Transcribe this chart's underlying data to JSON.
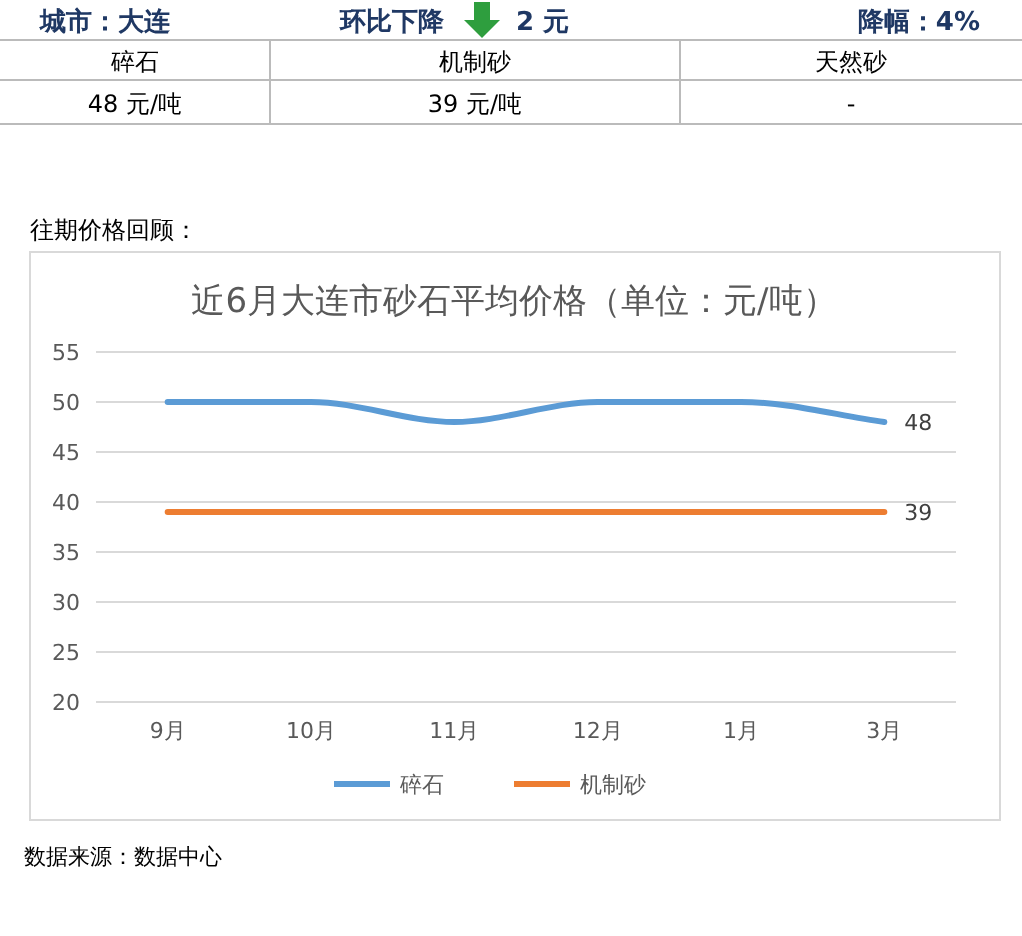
{
  "chart_data": [
    {
      "type": "other",
      "annotations": [
        "城市：大连",
        "环比下降",
        "2 元",
        "降幅：4%",
        "碎石",
        "机制砂",
        "天然砂",
        "48 元/吨",
        "39 元/吨",
        "-"
      ]
    },
    {
      "type": "line",
      "title": "近6月大连市砂石平均价格（单位：元/吨）",
      "categories": [
        "9月",
        "10月",
        "11月",
        "12月",
        "1月",
        "3月"
      ],
      "series": [
        {
          "name": "碎石",
          "color": "#5b9bd5",
          "values": [
            50,
            50,
            48,
            50,
            50,
            48
          ],
          "value_labels": [
            null,
            null,
            null,
            null,
            null,
            "48"
          ]
        },
        {
          "name": "机制砂",
          "color": "#ed7d31",
          "values": [
            39,
            39,
            39,
            39,
            39,
            39
          ],
          "value_labels": [
            null,
            null,
            null,
            null,
            null,
            "39"
          ]
        }
      ],
      "ylim": [
        20,
        55
      ],
      "yticks": [
        20,
        25,
        30,
        35,
        40,
        45,
        50,
        55
      ],
      "grid": "y",
      "legend": "bottom",
      "marker": "none",
      "line_style": "solid",
      "annotations": [
        "往期价格回顾：",
        "数据来源：数据中心"
      ]
    }
  ]
}
